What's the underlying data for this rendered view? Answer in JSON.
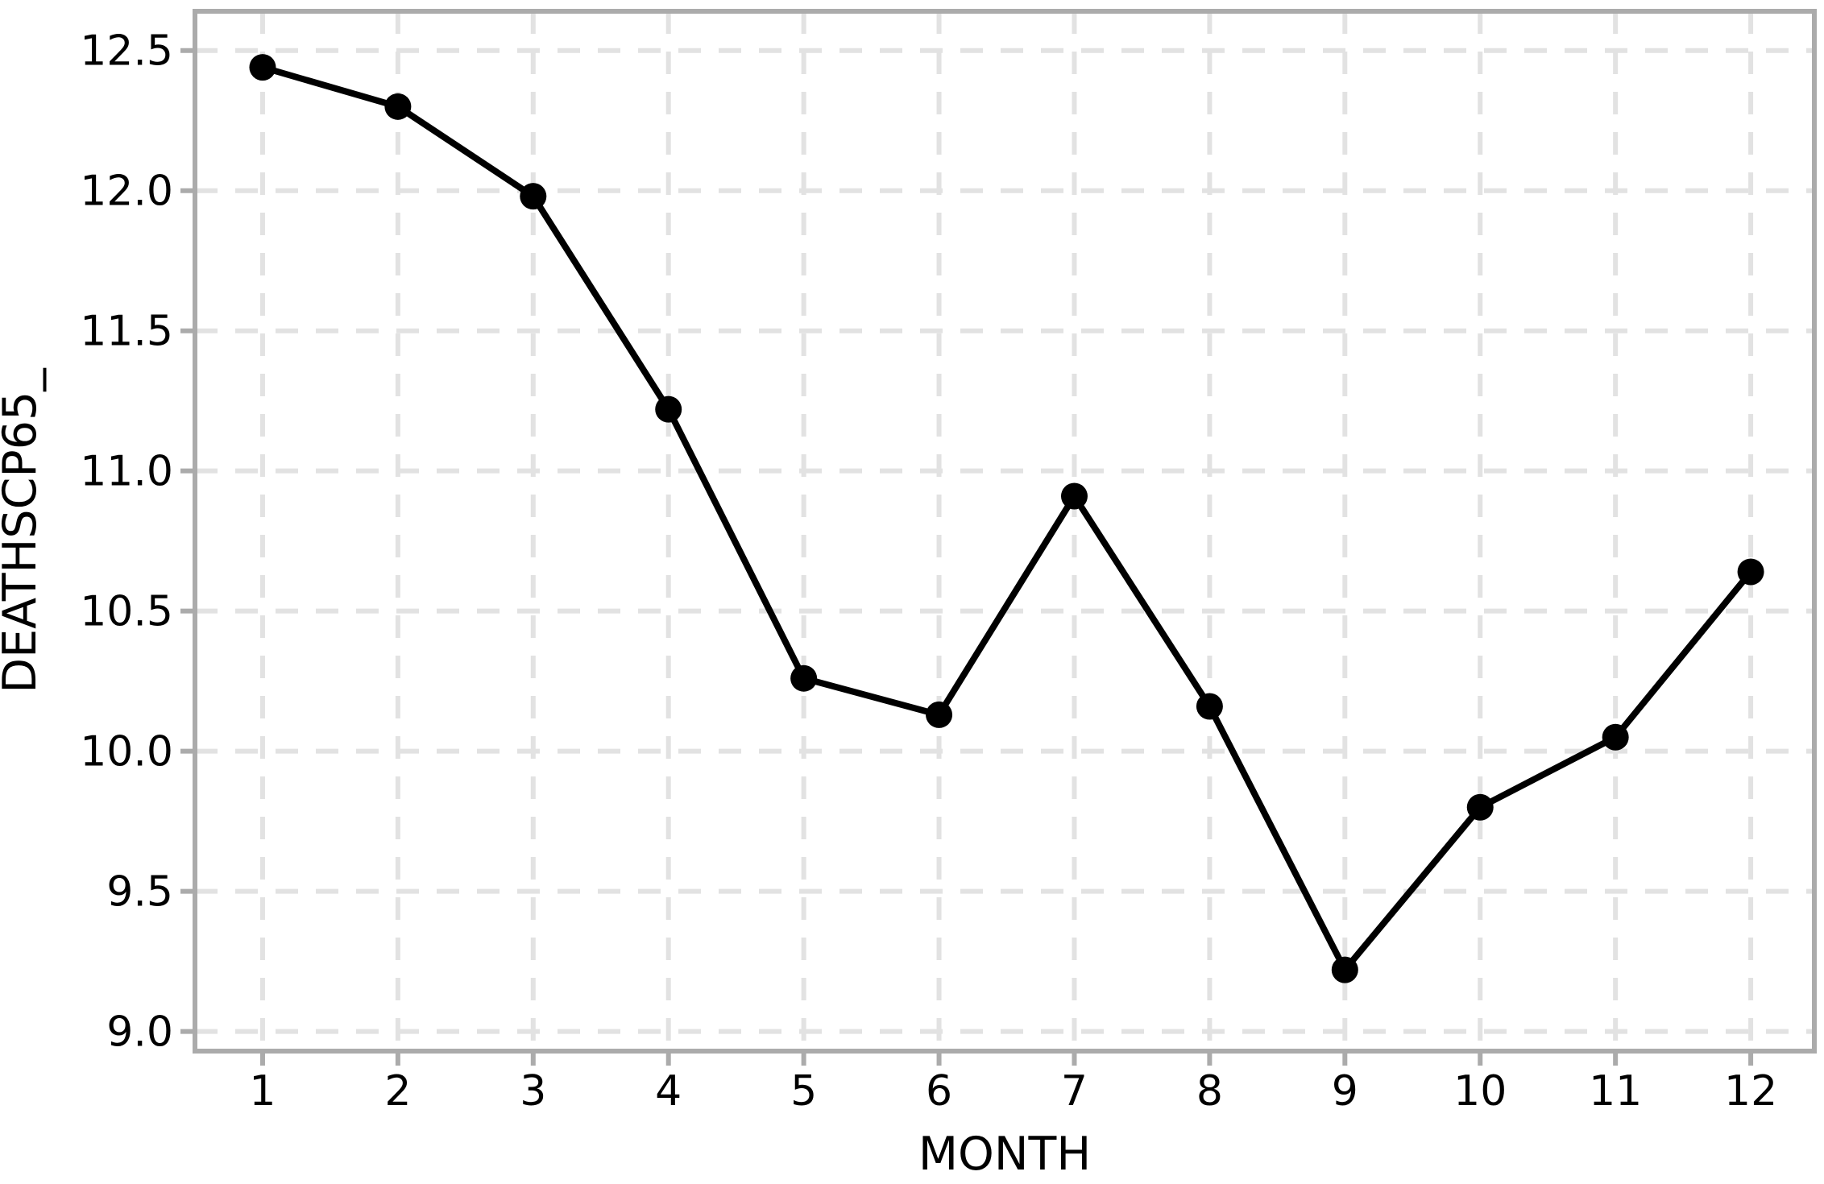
{
  "figure": {
    "background_color": "#ffffff",
    "text_color": "#000000",
    "panel_border_color": "#ababab",
    "tick_mark_color": "#ababab",
    "grid_color": "#e2e2e2",
    "line_color": "#000000",
    "point_color": "#000000"
  },
  "chart_data": {
    "type": "line",
    "title": "",
    "xlabel": "MONTH",
    "ylabel": "DEATHSCP65_",
    "x": [
      1,
      2,
      3,
      4,
      5,
      6,
      7,
      8,
      9,
      10,
      11,
      12
    ],
    "y": [
      12.44,
      12.3,
      11.98,
      11.22,
      10.26,
      10.13,
      10.91,
      10.16,
      9.22,
      9.8,
      10.05,
      10.64
    ],
    "x_ticks": [
      1,
      2,
      3,
      4,
      5,
      6,
      7,
      8,
      9,
      10,
      11,
      12
    ],
    "x_tick_labels": [
      "1",
      "2",
      "3",
      "4",
      "5",
      "6",
      "7",
      "8",
      "9",
      "10",
      "11",
      "12"
    ],
    "y_ticks": [
      9.0,
      9.5,
      10.0,
      10.5,
      11.0,
      11.5,
      12.0,
      12.5
    ],
    "y_tick_labels": [
      "9.0",
      "9.5",
      "10.0",
      "10.5",
      "11.0",
      "11.5",
      "12.0",
      "12.5"
    ],
    "xlim": [
      0.5,
      12.47
    ],
    "ylim": [
      8.93,
      12.64
    ],
    "grid": true,
    "grid_style": "dashed",
    "marker": "circle",
    "legend": null
  }
}
